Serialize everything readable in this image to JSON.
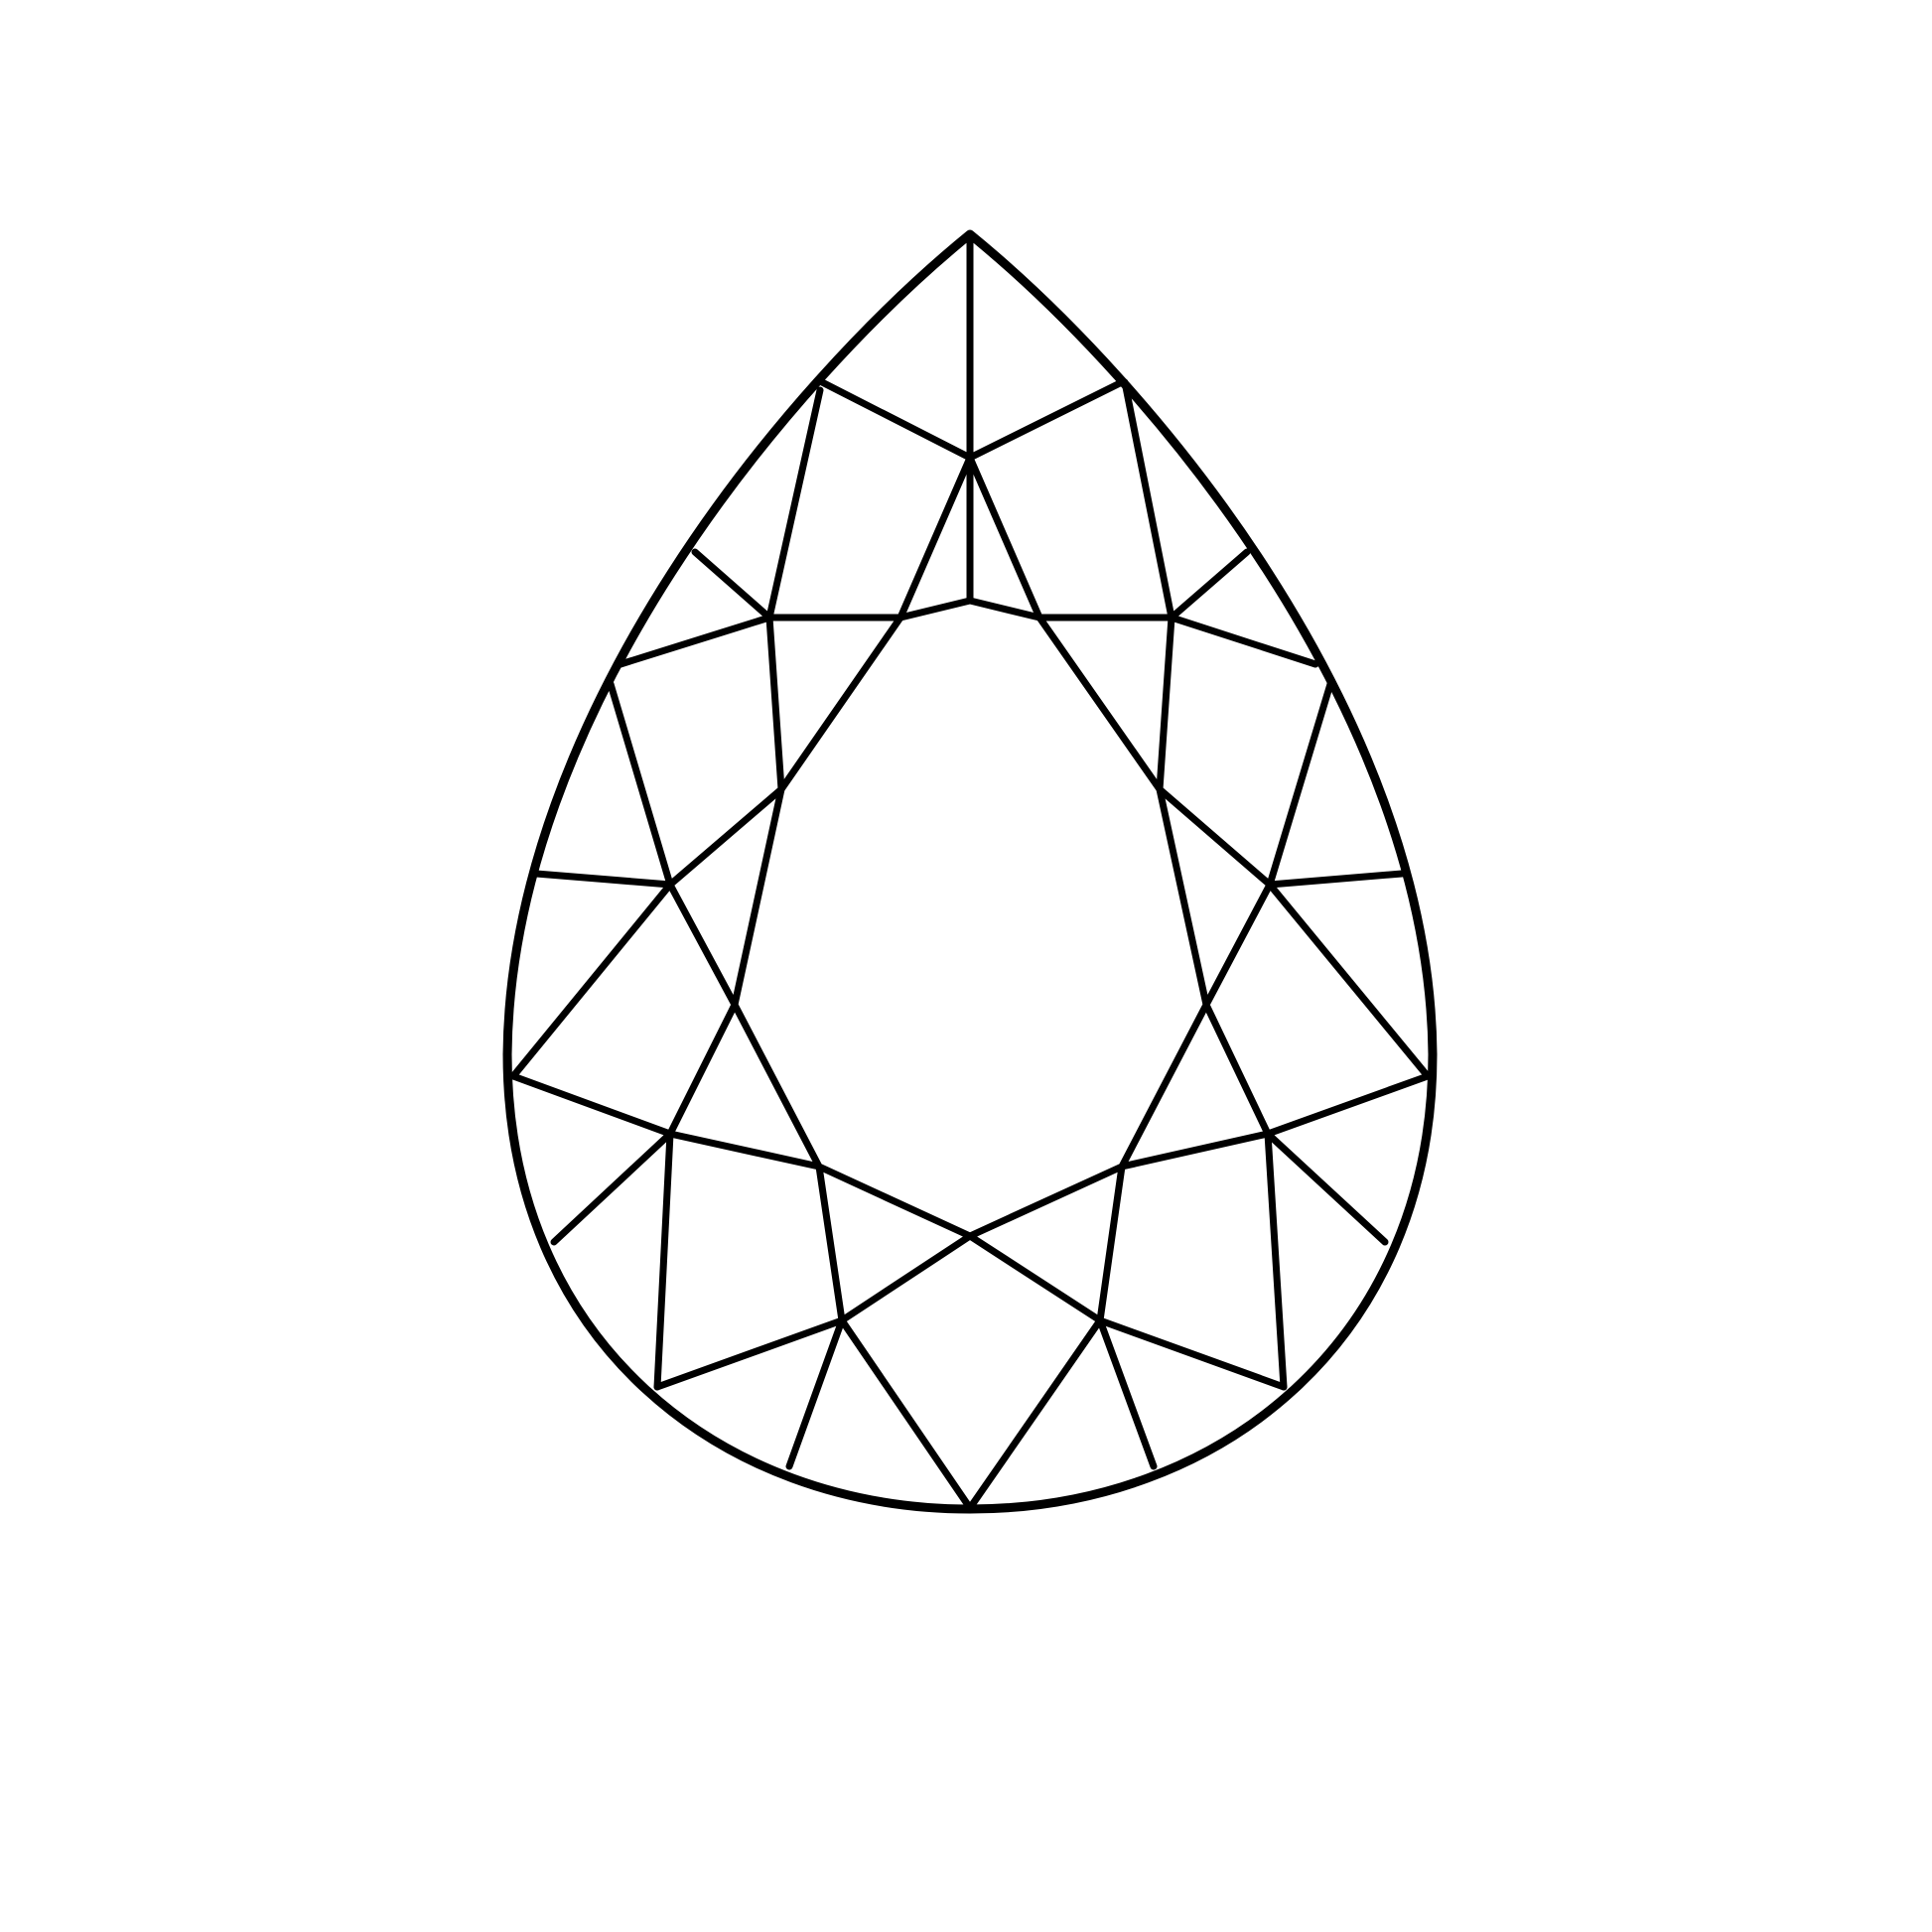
{
  "diagram": {
    "subject": "pear-cut-gemstone-facet-outline",
    "colors": {
      "background": "#ffffff",
      "stroke": "#000000"
    }
  }
}
